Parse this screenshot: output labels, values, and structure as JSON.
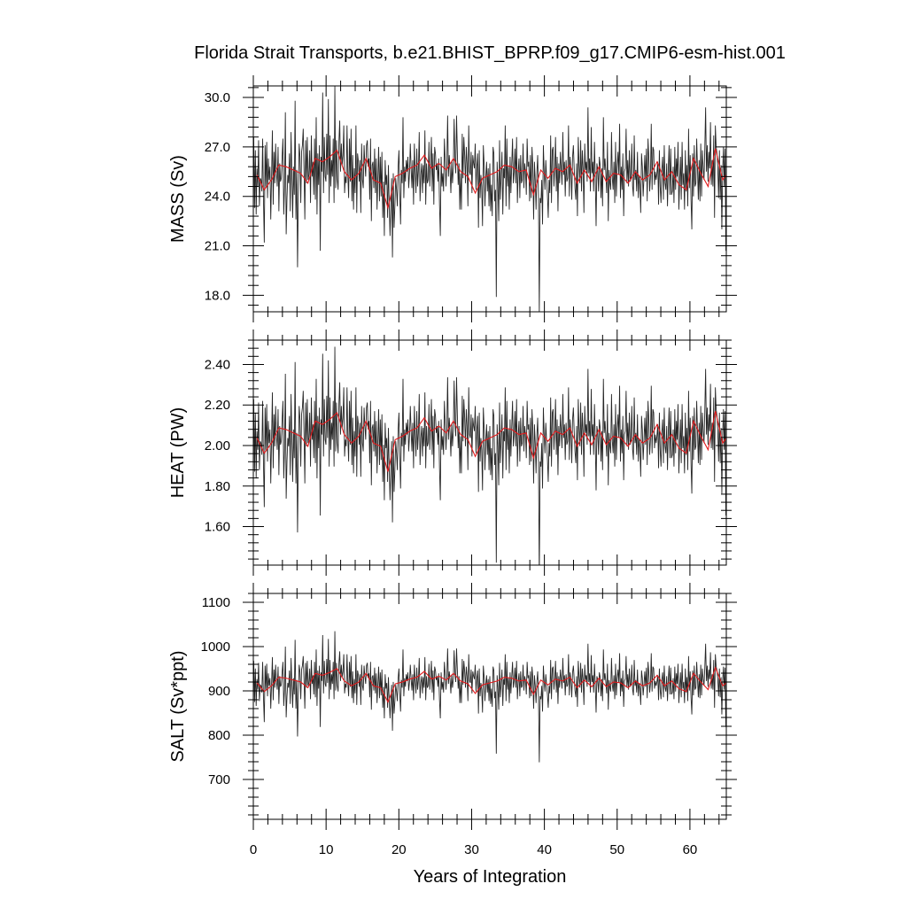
{
  "chart_data": {
    "type": "line",
    "title": "Florida Strait Transports, b.e21.BHIST_BPRP.f09_g17.CMIP6-esm-hist.001",
    "xlabel": "Years of Integration",
    "xlim": [
      0,
      65
    ],
    "xticks": [
      "0",
      "10",
      "20",
      "30",
      "40",
      "50",
      "60"
    ],
    "grid": false,
    "panels": [
      {
        "ylabel": "MASS (Sv)",
        "ylim": [
          17.0,
          30.7
        ],
        "yticks": [
          "18.0",
          "21.0",
          "24.0",
          "27.0",
          "30.0"
        ],
        "series": [
          {
            "role": "monthly",
            "color": "#000000",
            "values": [
              27.6,
              23.3,
              26.8,
              22.9,
              25.7,
              24.6,
              27.4,
              23.4,
              25.1,
              25.0,
              24.3,
              27.5,
              23.8,
              21.2,
              27.1,
              24.6,
              27.3,
              23.9,
              26.3,
              25.0,
              25.8,
              22.6,
              25.2,
              28.0,
              23.5,
              26.7,
              24.8,
              27.2,
              25.4,
              24.6,
              27.0,
              23.1,
              26.0,
              24.9,
              25.1,
              26.4,
              27.5,
              22.9,
              24.6,
              29.1,
              21.7,
              23.9,
              25.3,
              24.8,
              26.6,
              23.1,
              27.9,
              25.2,
              22.7,
              25.8,
              24.1,
              29.8,
              22.6,
              25.6,
              19.7,
              24.3,
              27.2,
              26.4,
              23.6,
              26.7,
              27.1,
              28.1,
              25.6,
              22.6,
              27.4,
              24.8,
              27.6,
              25.0,
              25.3,
              26.8,
              23.6,
              27.7,
              25.2,
              26.1,
              24.1,
              27.5,
              23.8,
              28.8,
              22.9,
              26.6,
              24.7,
              27.1,
              20.7,
              26.4,
              25.5,
              30.3,
              24.2,
              27.6,
              25.2,
              24.9,
              27.8,
              25.3,
              29.9,
              23.6,
              27.7,
              24.6,
              26.2,
              25.2,
              27.5,
              23.6,
              30.7,
              24.5,
              27.4,
              25.0,
              24.4,
              27.3,
              28.6,
              25.5,
              27.2,
              25.9,
              26.5,
              28.3,
              24.2,
              25.2,
              24.8,
              28.3,
              25.3,
              23.9,
              27.5,
              24.9,
              28.1,
              23.7,
              26.5,
              23.2,
              25.7,
              24.2,
              28.3,
              23.0,
              26.6,
              26.1,
              24.9,
              26.2,
              23.0,
              27.2,
              25.0,
              24.5,
              27.1,
              26.0,
              25.2,
              27.1,
              27.4,
              25.8,
              26.3,
              23.8,
              27.5,
              22.5,
              25.9,
              26.1,
              24.5,
              26.9,
              24.2,
              26.3,
              23.2,
              25.2,
              27.0,
              23.7,
              26.4,
              24.0,
              26.7,
              22.7,
              24.9,
              21.6,
              26.2,
              24.7,
              25.3,
              22.7,
              25.9,
              23.6,
              21.6,
              23.4,
              25.1,
              20.3,
              25.4,
              22.1,
              23.4,
              25.1,
              24.4,
              23.4,
              25.8,
              26.8,
              24.2,
              22.3,
              25.6,
              24.8,
              28.8,
              23.9,
              25.8,
              24.9,
              26.2,
              25.5,
              26.4,
              24.5,
              25.4,
              27.2,
              25.7,
              24.5,
              26.2,
              23.5,
              27.2,
              25.5,
              24.2,
              26.9,
              24.6,
              25.6,
              27.9,
              23.7,
              25.3,
              26.0,
              24.2,
              25.9,
              24.8,
              28.0,
              23.5,
              26.0,
              24.8,
              25.0,
              27.3,
              24.6,
              26.0,
              27.6,
              24.3,
              26.6,
              23.5,
              27.0,
              26.6,
              25.6,
              26.0,
              24.9,
              26.3,
              23.5,
              21.6,
              26.4,
              24.6,
              25.4,
              24.3,
              27.5,
              26.1,
              24.6,
              25.9,
              28.9,
              25.2,
              26.5,
              25.6,
              24.2,
              26.1,
              24.8,
              25.7,
              28.7,
              26.3,
              25.4,
              28.9,
              26.7,
              24.7,
              26.0,
              23.2,
              25.4,
              23.2,
              27.8,
              25.1,
              27.6,
              26.5,
              24.8,
              27.0,
              26.0,
              23.4,
              28.3,
              25.5,
              25.3,
              26.7,
              24.2,
              26.5,
              26.0,
              25.7,
              27.2,
              24.4,
              25.8,
              26.6,
              22.1,
              26.8,
              23.9,
              25.3,
              24.6,
              22.2,
              27.1,
              25.9,
              23.4,
              25.1,
              26.1,
              24.3,
              25.7,
              23.4,
              26.0,
              23.1,
              24.7,
              22.8,
              27.0,
              26.6,
              23.7,
              24.4,
              17.9,
              26.1,
              24.8,
              22.5,
              27.4,
              23.8,
              25.2,
              26.7,
              22.9,
              25.7,
              25.1,
              28.3,
              23.4,
              27.5,
              24.6,
              25.8,
              23.2,
              26.4,
              24.2,
              25.9,
              27.5,
              24.8,
              25.5,
              26.9,
              24.8,
              27.6,
              23.6,
              25.5,
              26.3,
              23.9,
              26.5,
              24.8,
              25.0,
              27.2,
              24.5,
              26.0,
              25.5,
              24.1,
              27.5,
              25.8,
              26.1,
              23.7,
              26.5,
              23.9,
              27.0,
              25.8,
              22.6,
              26.1,
              25.0,
              23.2,
              25.4,
              26.5,
              24.0,
              17.0,
              23.9,
              23.6,
              25.0,
              22.3,
              27.1,
              25.5,
              24.4,
              26.2,
              25.1,
              24.1,
              22.7,
              25.0,
              24.2,
              27.7,
              23.6,
              26.8,
              27.0,
              24.6,
              25.7,
              27.6,
              24.3,
              26.4,
              23.1,
              26.0,
              24.8,
              26.7,
              25.7,
              24.7,
              27.9,
              25.3,
              26.1,
              24.0,
              26.2,
              24.9,
              25.1,
              28.3,
              24.0,
              26.4,
              25.6,
              23.8,
              26.4,
              27.1,
              25.7,
              24.5,
              23.8,
              26.0,
              22.8,
              27.6,
              25.9,
              24.8,
              27.4,
              24.3,
              26.8,
              25.7,
              23.0,
              27.2,
              25.6,
              26.1,
              24.9,
              29.4,
              25.4,
              26.3,
              24.3,
              28.2,
              25.4,
              26.1,
              24.3,
              27.3,
              25.1,
              22.2,
              26.0,
              25.6,
              24.3,
              26.4,
              25.9,
              23.9,
              25.7,
              23.4,
              28.8,
              25.6,
              26.3,
              25.4,
              24.2,
              27.3,
              22.5,
              25.6,
              24.8,
              24.4,
              27.9,
              25.1,
              24.4,
              26.1,
              23.6,
              27.3,
              24.0,
              25.8,
              26.7,
              25.3,
              28.4,
              23.9,
              25.8,
              24.4,
              26.6,
              22.8,
              25.5,
              25.7,
              28.1,
              24.8,
              26.2,
              24.6,
              26.8,
              24.9,
              25.2,
              27.2,
              24.6,
              24.0,
              27.7,
              25.0,
              25.6,
              24.3,
              26.7,
              23.9,
              25.3,
              24.7,
              23.0,
              26.6,
              25.8,
              24.0,
              25.1,
              26.5,
              24.9,
              26.9,
              23.7,
              27.5,
              26.3,
              24.3,
              25.2,
              28.4,
              24.4,
              27.0,
              26.8,
              24.7,
              25.5,
              25.0,
              25.4,
              26.1,
              23.5,
              26.8,
              24.6,
              23.6,
              25.6,
              26.4,
              23.8,
              27.1,
              24.8,
              24.4,
              26.0,
              23.4,
              25.7,
              27.1,
              24.1,
              26.9,
              24.1,
              24.3,
              25.8,
              23.6,
              27.0,
              24.4,
              26.3,
              25.2,
              27.3,
              23.2,
              24.8,
              26.4,
              23.8,
              27.3,
              24.7,
              25.4,
              23.2,
              26.8,
              24.3,
              25.9,
              23.4,
              28.1,
              24.5,
              26.5,
              23.8,
              22.0,
              26.6,
              24.0,
              27.1,
              24.6,
              24.8,
              27.5,
              25.7,
              23.8,
              26.2,
              23.7,
              27.2,
              24.0,
              26.8,
              25.7,
              25.0,
              26.9,
              29.4,
              25.5,
              27.1,
              24.9,
              26.7,
              25.7,
              28.5,
              24.7,
              26.2,
              24.6,
              27.7,
              22.7,
              28.3,
              27.0,
              26.6,
              25.7,
              23.9,
              26.8,
              23.8,
              25.9,
              22.0,
              25.5,
              27.0,
              24.6,
              26.9,
              20.7
            ]
          },
          {
            "role": "annual-mean",
            "color": "#e41a1c",
            "values": [
              25.3,
              24.4,
              25.0,
              25.9,
              25.8,
              25.6,
              25.4,
              24.8,
              26.3,
              26.1,
              26.4,
              26.8,
              25.5,
              25.0,
              25.4,
              26.3,
              25.0,
              24.8,
              23.3,
              25.2,
              25.4,
              25.7,
              25.9,
              26.5,
              25.7,
              26.0,
              25.6,
              26.3,
              25.5,
              25.2,
              24.2,
              25.1,
              25.3,
              25.5,
              25.9,
              25.8,
              25.5,
              25.6,
              24.1,
              25.6,
              25.1,
              25.7,
              25.5,
              25.9,
              24.8,
              25.6,
              24.9,
              25.8,
              24.9,
              25.4,
              25.3,
              24.8,
              25.5,
              25.0,
              25.3,
              26.1,
              25.0,
              25.5,
              24.7,
              24.4,
              26.3,
              25.4,
              24.6,
              26.9,
              25.0,
              25.6
            ]
          }
        ]
      },
      {
        "ylabel": "HEAT (PW)",
        "ylim": [
          1.41,
          2.52
        ],
        "yticks": [
          "1.60",
          "1.80",
          "2.00",
          "2.20",
          "2.40"
        ],
        "series": [
          {
            "role": "monthly",
            "color": "#000000",
            "values": []
          },
          {
            "role": "annual-mean",
            "color": "#e41a1c",
            "values": []
          }
        ]
      },
      {
        "ylabel": "SALT (Sv*ppt)",
        "ylim": [
          610,
          1120
        ],
        "yticks": [
          "700",
          "800",
          "900",
          "1000",
          "1100"
        ],
        "series": [
          {
            "role": "monthly",
            "color": "#000000",
            "values": []
          },
          {
            "role": "annual-mean",
            "color": "#e41a1c",
            "values": []
          }
        ]
      }
    ]
  }
}
